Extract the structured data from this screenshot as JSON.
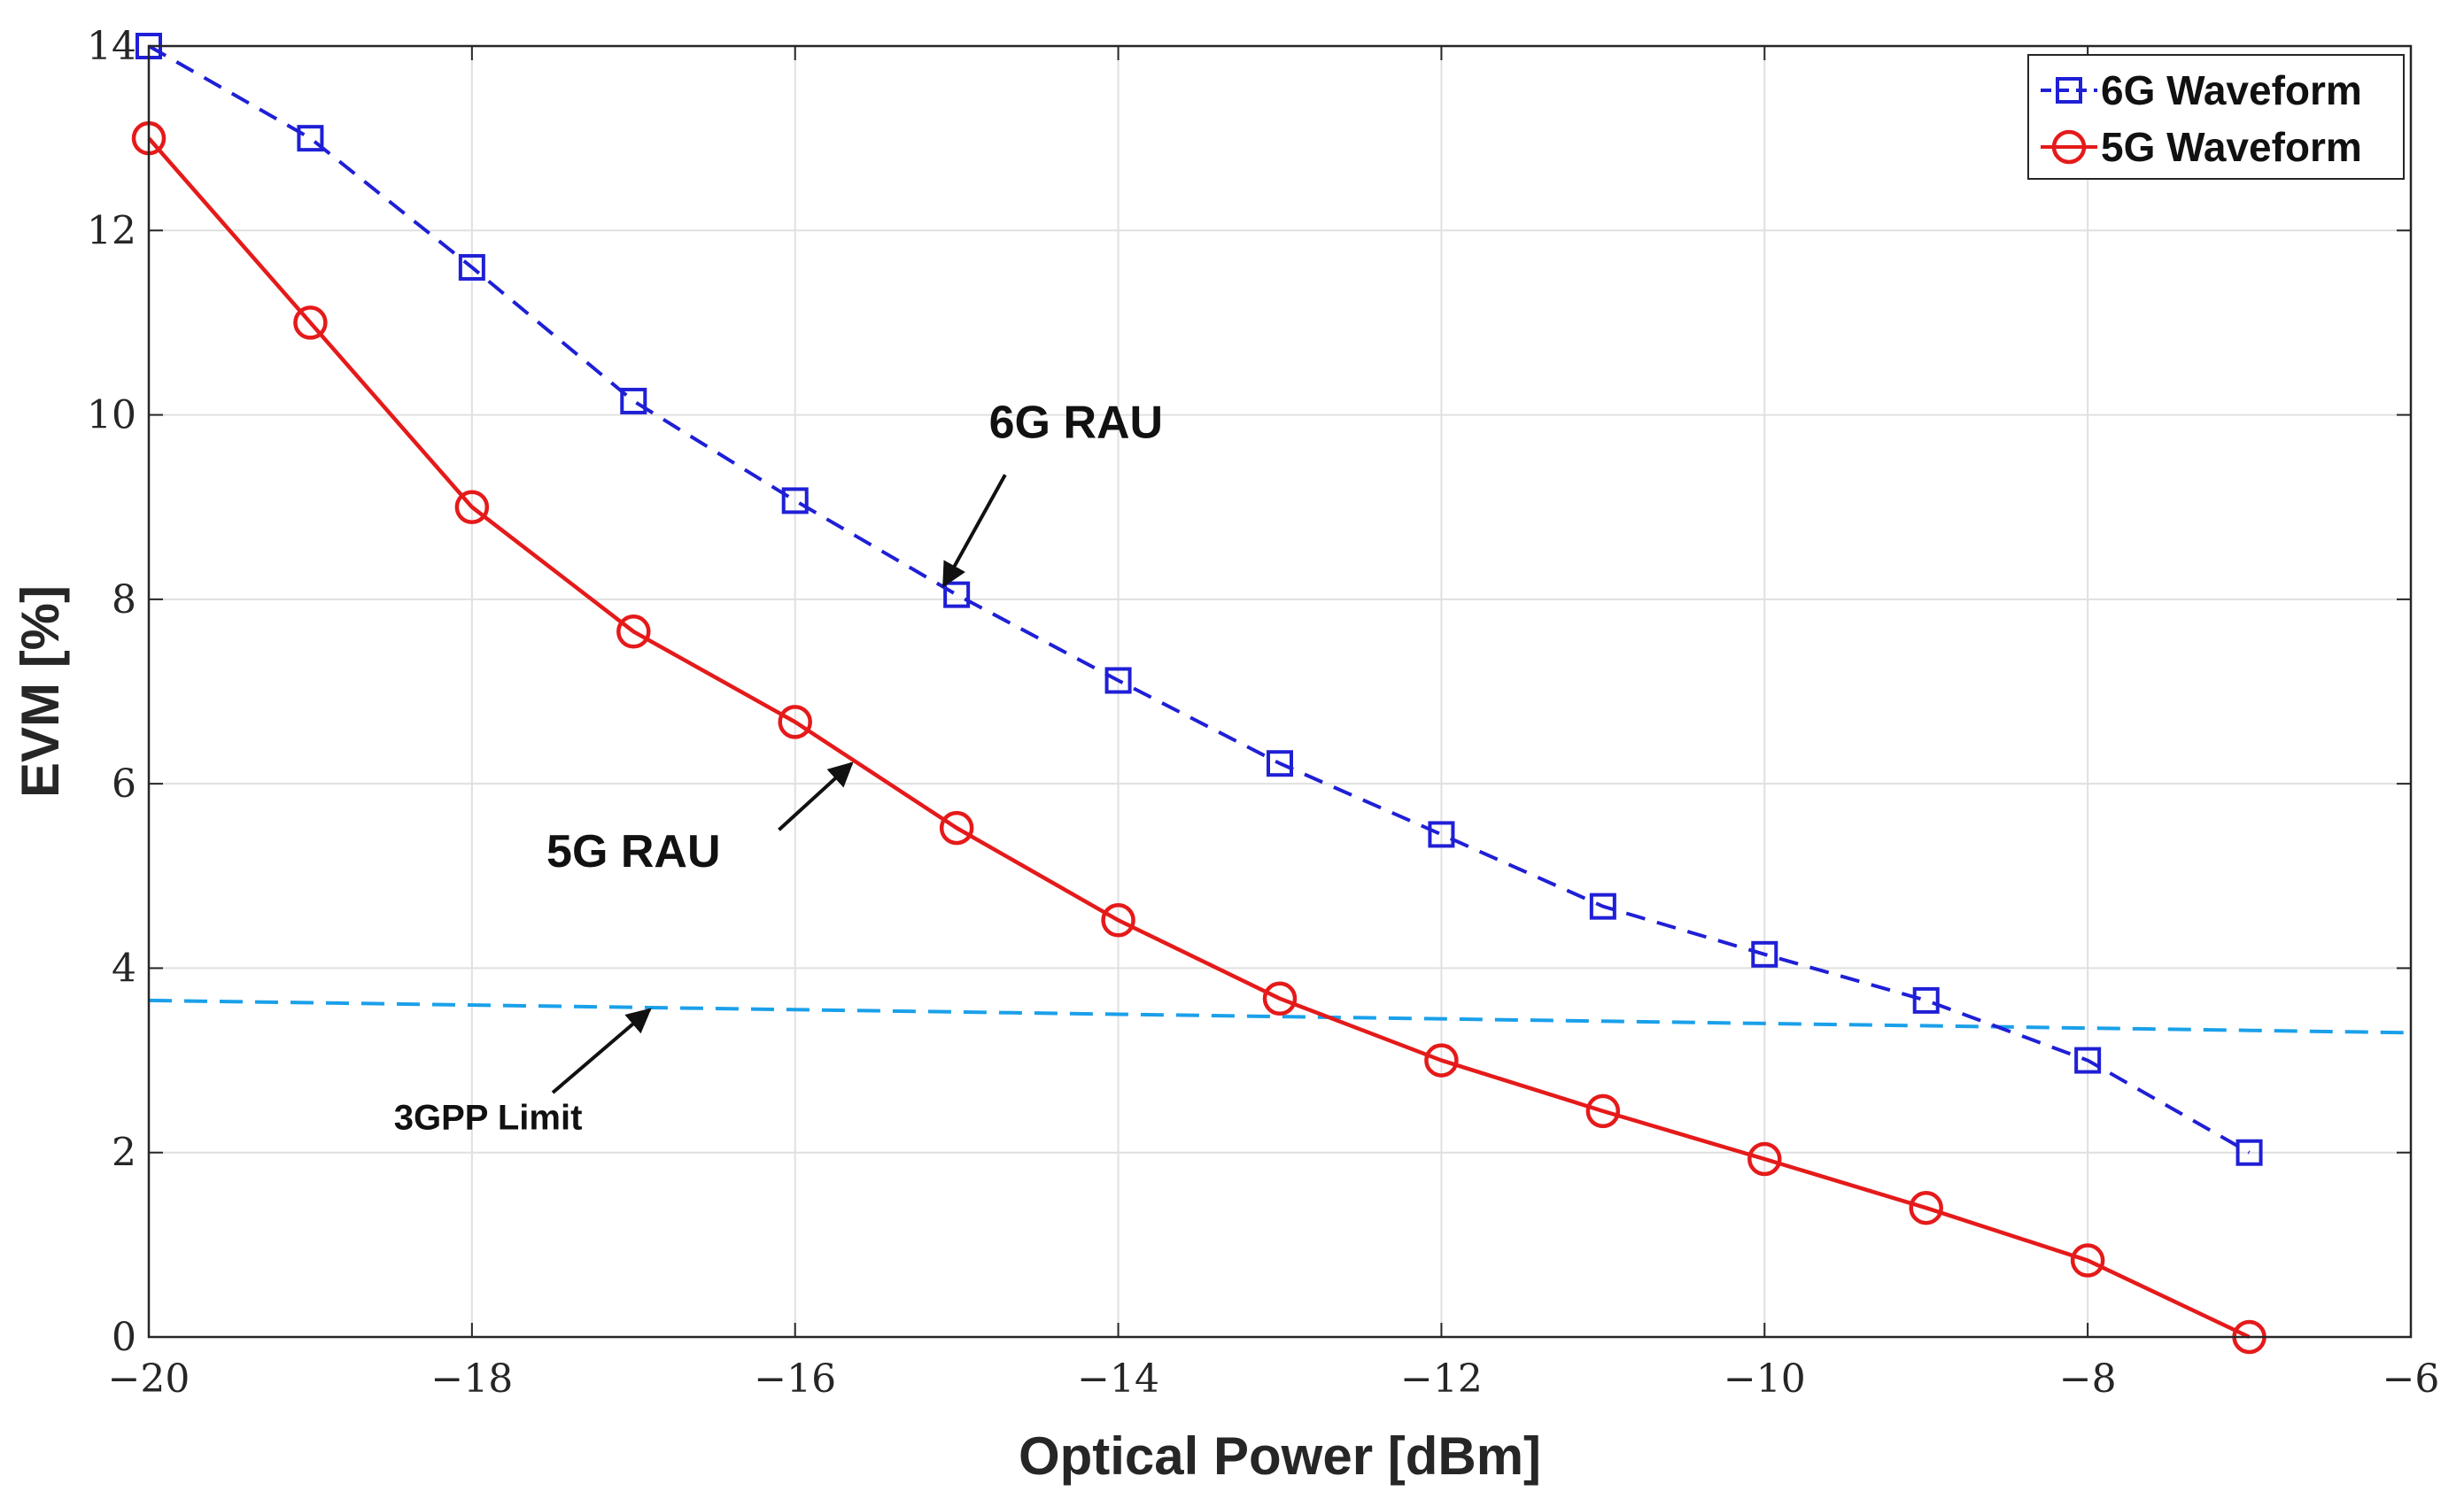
{
  "chart_data": {
    "type": "line",
    "title": "",
    "xlabel": "Optical Power [dBm]",
    "ylabel": "EVM [%]",
    "xlim": [
      -20,
      -6
    ],
    "ylim": [
      0,
      14
    ],
    "xticks": [
      -20,
      -18,
      -16,
      -14,
      -12,
      -10,
      -8,
      -6
    ],
    "yticks": [
      0,
      2,
      4,
      6,
      8,
      10,
      12,
      14
    ],
    "xtick_labels": [
      "−20",
      "−18",
      "−16",
      "−14",
      "−12",
      "−10",
      "−8",
      "−6"
    ],
    "ytick_labels": [
      "0",
      "2",
      "4",
      "6",
      "8",
      "10",
      "12",
      "14"
    ],
    "grid": true,
    "legend_position": "top-right",
    "series": [
      {
        "name": "6G Waveform",
        "color": "#1f1fd6",
        "line_style": "dashed",
        "marker": "square",
        "x": [
          -20,
          -19,
          -18,
          -17,
          -16,
          -15,
          -14,
          -13,
          -12,
          -11,
          -10,
          -9,
          -8,
          -7
        ],
        "values": [
          14.0,
          13.0,
          11.6,
          10.15,
          9.07,
          8.05,
          7.12,
          6.22,
          5.45,
          4.67,
          4.15,
          3.65,
          3.0,
          2.0
        ]
      },
      {
        "name": "5G Waveform",
        "color": "#e51a1a",
        "line_style": "solid",
        "marker": "circle",
        "x": [
          -20,
          -19,
          -18,
          -17,
          -16,
          -15,
          -14,
          -13,
          -12,
          -11,
          -10,
          -9,
          -8,
          -7
        ],
        "values": [
          13.0,
          11.0,
          9.0,
          7.65,
          6.67,
          5.52,
          4.52,
          3.67,
          3.0,
          2.45,
          1.93,
          1.4,
          0.83,
          0.0
        ]
      }
    ],
    "reference_line": {
      "name": "3GPP Limit",
      "color": "#1aa0ea",
      "line_style": "dashed",
      "x": [
        -20,
        -6
      ],
      "values": [
        3.65,
        3.3
      ]
    },
    "annotations": [
      {
        "text": "6G RAU",
        "size": "large",
        "text_at": [
          -14.8,
          9.75
        ],
        "text_anchor": "start",
        "arrow_from": [
          -14.7,
          9.35
        ],
        "arrow_to": [
          -15.08,
          8.15
        ]
      },
      {
        "text": "5G RAU",
        "size": "large",
        "text_at": [
          -17.0,
          5.1
        ],
        "text_anchor": "middle",
        "arrow_from": [
          -16.1,
          5.5
        ],
        "arrow_to": [
          -15.65,
          6.22
        ]
      },
      {
        "text": "3GPP Limit",
        "size": "small",
        "text_at": [
          -17.9,
          2.25
        ],
        "text_anchor": "middle",
        "arrow_from": [
          -17.5,
          2.65
        ],
        "arrow_to": [
          -16.9,
          3.55
        ]
      }
    ],
    "colors": {
      "axis": "#262626",
      "grid": "#e0e0e0",
      "annotation": "#111111"
    }
  }
}
